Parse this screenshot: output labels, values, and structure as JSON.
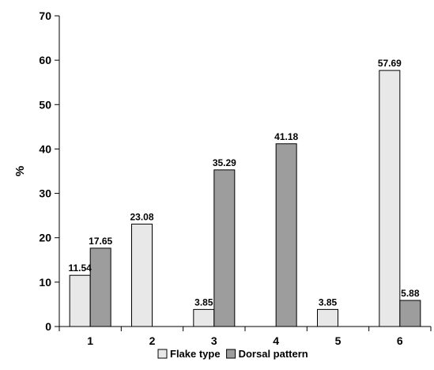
{
  "chart_data": {
    "type": "bar",
    "title": "",
    "xlabel": "",
    "ylabel": "%",
    "ylim": [
      0,
      70
    ],
    "yticks": [
      0,
      10,
      20,
      30,
      40,
      50,
      60,
      70
    ],
    "grid": false,
    "legend_position": "bottom",
    "categories": [
      "1",
      "2",
      "3",
      "4",
      "5",
      "6"
    ],
    "series": [
      {
        "name": "Flake type",
        "color": "#e8e8e8",
        "values": [
          11.54,
          23.08,
          3.85,
          null,
          3.85,
          57.69
        ],
        "labels": [
          "11.54",
          "23.08",
          "3.85",
          "",
          "3.85",
          "57.69"
        ]
      },
      {
        "name": "Dorsal pattern",
        "color": "#9d9d9d",
        "values": [
          17.65,
          null,
          35.29,
          41.18,
          null,
          5.88
        ],
        "labels": [
          "17.65",
          "",
          "35.29",
          "41.18",
          "",
          "5.88"
        ]
      }
    ]
  }
}
